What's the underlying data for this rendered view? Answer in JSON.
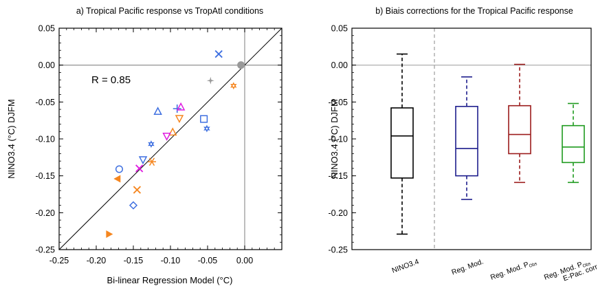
{
  "chart_data": [
    {
      "type": "scatter",
      "title": "a) Tropical Pacific response vs TropAtl conditions",
      "xlabel": "Bi-linear Regression Model (°C)",
      "ylabel": "NINO3.4 (°C) DJFM",
      "xlim": [
        -0.25,
        0.05
      ],
      "ylim": [
        -0.25,
        0.05
      ],
      "xticks": [
        -0.25,
        -0.2,
        -0.15,
        -0.1,
        -0.05,
        0.0
      ],
      "xtick_labels": [
        "-0.25",
        "-0.20",
        "-0.15",
        "-0.10",
        "-0.05",
        "0.00"
      ],
      "yticks": [
        0.05,
        0.0,
        -0.05,
        -0.1,
        -0.15,
        -0.2,
        -0.25
      ],
      "ytick_labels": [
        "0.05",
        "0.00",
        "-0.05",
        "-0.10",
        "-0.15",
        "-0.20",
        "-0.25"
      ],
      "annotation": "R = 0.85",
      "reference_lines": [
        "x=0",
        "y=0",
        "1:1 diagonal"
      ],
      "colors": {
        "blue": "#3e6fe0",
        "orange": "#f5861f",
        "magenta": "#e01ee0",
        "gray": "#999999"
      },
      "points": [
        {
          "x": -0.035,
          "y": 0.015,
          "marker": "x",
          "color": "blue"
        },
        {
          "x": -0.005,
          "y": 0.0,
          "marker": "dot",
          "color": "gray"
        },
        {
          "x": -0.046,
          "y": -0.021,
          "marker": "star4",
          "color": "gray"
        },
        {
          "x": -0.015,
          "y": -0.028,
          "marker": "star6",
          "color": "orange"
        },
        {
          "x": -0.117,
          "y": -0.063,
          "marker": "triangle",
          "color": "blue"
        },
        {
          "x": -0.091,
          "y": -0.059,
          "marker": "plus",
          "color": "blue"
        },
        {
          "x": -0.086,
          "y": -0.057,
          "marker": "triangle",
          "color": "magenta"
        },
        {
          "x": -0.088,
          "y": -0.072,
          "marker": "triangle-down",
          "color": "orange"
        },
        {
          "x": -0.055,
          "y": -0.073,
          "marker": "square",
          "color": "blue"
        },
        {
          "x": -0.051,
          "y": -0.086,
          "marker": "star6",
          "color": "blue"
        },
        {
          "x": -0.097,
          "y": -0.091,
          "marker": "triangle",
          "color": "orange"
        },
        {
          "x": -0.105,
          "y": -0.096,
          "marker": "triangle-down",
          "color": "magenta"
        },
        {
          "x": -0.126,
          "y": -0.107,
          "marker": "star6",
          "color": "blue"
        },
        {
          "x": -0.137,
          "y": -0.128,
          "marker": "triangle-down",
          "color": "blue"
        },
        {
          "x": -0.125,
          "y": -0.131,
          "marker": "asterisk",
          "color": "orange"
        },
        {
          "x": -0.142,
          "y": -0.14,
          "marker": "x",
          "color": "magenta"
        },
        {
          "x": -0.169,
          "y": -0.141,
          "marker": "circle",
          "color": "blue"
        },
        {
          "x": -0.171,
          "y": -0.154,
          "marker": "tri-left",
          "color": "orange"
        },
        {
          "x": -0.145,
          "y": -0.169,
          "marker": "x",
          "color": "orange"
        },
        {
          "x": -0.15,
          "y": -0.19,
          "marker": "diamond",
          "color": "blue"
        },
        {
          "x": -0.183,
          "y": -0.229,
          "marker": "tri-right",
          "color": "orange"
        }
      ]
    },
    {
      "type": "box",
      "title": "b) Biais corrections for the Tropical Pacific response",
      "ylabel": "NINO3.4 (°C) DJFM",
      "ylim": [
        -0.25,
        0.05
      ],
      "yticks": [
        0.05,
        0.0,
        -0.05,
        -0.1,
        -0.15,
        -0.2,
        -0.25
      ],
      "ytick_labels": [
        "0.05",
        "0.00",
        "-0.05",
        "-0.10",
        "-0.15",
        "-0.20",
        "-0.25"
      ],
      "reference_lines": [
        "y=0",
        "vertical dashed separator after first box"
      ],
      "boxes": [
        {
          "label": "NINO3.4",
          "sub": "",
          "line2": "",
          "color": "#000000",
          "min": -0.229,
          "q1": -0.153,
          "median": -0.096,
          "q3": -0.058,
          "max": 0.015
        },
        {
          "label": "Reg. Mod.",
          "sub": "",
          "line2": "",
          "color": "#1c1c8c",
          "min": -0.182,
          "q1": -0.15,
          "median": -0.113,
          "q3": -0.056,
          "max": -0.016
        },
        {
          "label": "Reg. Mod. P",
          "sub": "Obs",
          "line2": "",
          "color": "#9b1b1b",
          "min": -0.159,
          "q1": -0.12,
          "median": -0.094,
          "q3": -0.055,
          "max": 0.001
        },
        {
          "label": "Reg. Mod. P",
          "sub": "Obs",
          "line2": "E-Pac. corr.",
          "color": "#1e9a1e",
          "min": -0.159,
          "q1": -0.132,
          "median": -0.111,
          "q3": -0.082,
          "max": -0.052
        }
      ]
    }
  ]
}
